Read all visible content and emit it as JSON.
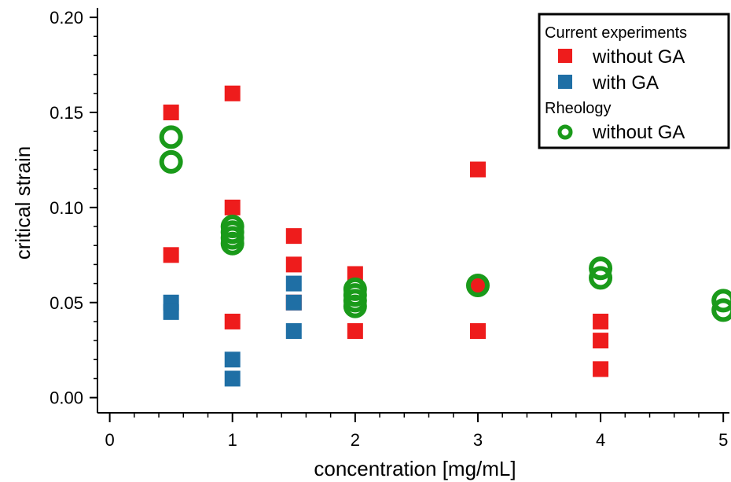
{
  "chart_data": {
    "type": "scatter",
    "xlabel": "concentration [mg/mL]",
    "ylabel": "critical strain",
    "xlim": [
      -0.1,
      5.05
    ],
    "ylim": [
      -0.008,
      0.205
    ],
    "xticks": [
      0,
      1,
      2,
      3,
      4,
      5
    ],
    "yticks": [
      0.0,
      0.05,
      0.1,
      0.15,
      0.2
    ],
    "xtick_labels": [
      "0",
      "1",
      "2",
      "3",
      "4",
      "5"
    ],
    "ytick_labels": [
      "0.00",
      "0.05",
      "0.10",
      "0.15",
      "0.20"
    ],
    "grid": false,
    "legend": {
      "placement": "top-right",
      "groups": [
        {
          "title": "Current experiments",
          "entries": [
            {
              "label": "without GA",
              "series": 0
            },
            {
              "label": "with GA",
              "series": 1
            }
          ]
        },
        {
          "title": "Rheology",
          "entries": [
            {
              "label": "without GA",
              "series": 2
            }
          ]
        }
      ]
    },
    "series": [
      {
        "group": "Current experiments",
        "label": "without GA",
        "marker": "square",
        "color": "#ee1c1c",
        "points": [
          [
            0.5,
            0.15
          ],
          [
            0.5,
            0.075
          ],
          [
            1.0,
            0.16
          ],
          [
            1.0,
            0.1
          ],
          [
            1.0,
            0.04
          ],
          [
            1.5,
            0.085
          ],
          [
            1.5,
            0.07
          ],
          [
            1.5,
            0.05
          ],
          [
            2.0,
            0.065
          ],
          [
            2.0,
            0.035
          ],
          [
            3.0,
            0.12
          ],
          [
            3.0,
            0.059
          ],
          [
            3.0,
            0.035
          ],
          [
            4.0,
            0.04
          ],
          [
            4.0,
            0.03
          ],
          [
            4.0,
            0.015
          ]
        ]
      },
      {
        "group": "Current experiments",
        "label": "with GA",
        "marker": "square",
        "color": "#1f6fa5",
        "points": [
          [
            0.5,
            0.05
          ],
          [
            0.5,
            0.045
          ],
          [
            1.0,
            0.02
          ],
          [
            1.0,
            0.01
          ],
          [
            1.5,
            0.06
          ],
          [
            1.5,
            0.05
          ],
          [
            1.5,
            0.035
          ]
        ]
      },
      {
        "group": "Rheology",
        "label": "without GA",
        "marker": "ring",
        "color": "#1a9a1a",
        "points": [
          [
            0.5,
            0.137
          ],
          [
            0.5,
            0.124
          ],
          [
            1.0,
            0.09
          ],
          [
            1.0,
            0.087
          ],
          [
            1.0,
            0.084
          ],
          [
            1.0,
            0.081
          ],
          [
            2.0,
            0.057
          ],
          [
            2.0,
            0.054
          ],
          [
            2.0,
            0.051
          ],
          [
            2.0,
            0.048
          ],
          [
            3.0,
            0.059
          ],
          [
            4.0,
            0.068
          ],
          [
            4.0,
            0.063
          ],
          [
            5.0,
            0.051
          ],
          [
            5.0,
            0.046
          ]
        ]
      }
    ]
  }
}
